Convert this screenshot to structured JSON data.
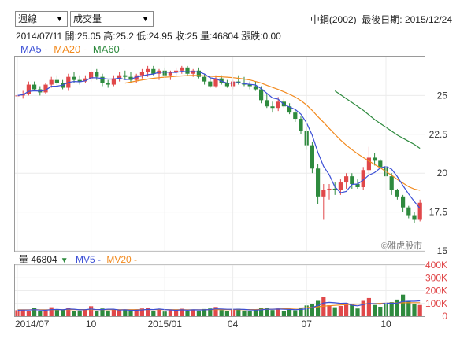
{
  "toolbar": {
    "period_select": "週線",
    "indicator_select": "成交量",
    "dropdown_glyph": "▼"
  },
  "header": {
    "stock": "中鋼(2002)",
    "last_date_label": "最後日期:",
    "last_date": "2015/12/24"
  },
  "quote": {
    "date": "2014/07/11",
    "open_label": "開:",
    "open": "25.05",
    "high_label": "高:",
    "high": "25.2",
    "low_label": "低:",
    "low": "24.95",
    "close_label": "收:",
    "close": "25",
    "volume_label": "量:",
    "volume": "46804",
    "change_label": "漲跌:",
    "change": "0.00"
  },
  "legend": {
    "ma5": "MA5 -",
    "ma20": "MA20 -",
    "ma60": "MA60 -",
    "vol_label": "量 46804",
    "vol_arrow": "▼",
    "mv5": "MV5 -",
    "mv20": "MV20 -"
  },
  "watermark": "©雅虎股市",
  "colors": {
    "up": "#e0484a",
    "down": "#2e8a3e",
    "ma5": "#3b4fd6",
    "ma20": "#f28a1e",
    "ma60": "#2e8a3e",
    "blue_text": "#3b4fd6",
    "orange_text": "#f28a1e",
    "green_text": "#2e8a3e"
  },
  "chart_data": [
    {
      "type": "candlestick",
      "title": "",
      "y_ticks": [
        "25",
        "22.5",
        "20",
        "17.5",
        "15"
      ],
      "ylim": [
        15,
        27.5
      ],
      "x_tick_labels": [
        "2014/07",
        "10",
        "2015/01",
        "04",
        "07",
        "10"
      ],
      "x_tick_weeks": [
        0,
        13,
        26,
        38,
        51,
        65
      ],
      "candles": [
        [
          25.0,
          25.2,
          24.95,
          25.0
        ],
        [
          25.0,
          25.3,
          24.8,
          25.1
        ],
        [
          25.1,
          25.9,
          25.0,
          25.7
        ],
        [
          25.7,
          25.9,
          25.3,
          25.4
        ],
        [
          25.4,
          25.6,
          25.0,
          25.2
        ],
        [
          25.2,
          25.8,
          25.1,
          25.7
        ],
        [
          25.7,
          26.2,
          25.5,
          26.0
        ],
        [
          26.0,
          26.3,
          25.6,
          25.8
        ],
        [
          25.8,
          26.0,
          25.4,
          25.5
        ],
        [
          25.5,
          26.4,
          25.3,
          26.2
        ],
        [
          26.2,
          26.5,
          25.8,
          26.0
        ],
        [
          26.0,
          26.3,
          25.7,
          25.9
        ],
        [
          25.9,
          26.3,
          25.8,
          26.1
        ],
        [
          26.1,
          26.6,
          25.9,
          26.5
        ],
        [
          26.5,
          26.7,
          26.0,
          26.2
        ],
        [
          26.2,
          26.4,
          25.6,
          25.8
        ],
        [
          25.8,
          26.0,
          25.5,
          25.7
        ],
        [
          25.7,
          26.3,
          25.6,
          26.1
        ],
        [
          26.1,
          26.5,
          25.9,
          26.3
        ],
        [
          26.3,
          26.6,
          26.0,
          26.2
        ],
        [
          26.2,
          26.5,
          25.8,
          26.0
        ],
        [
          26.0,
          26.4,
          25.8,
          26.3
        ],
        [
          26.3,
          26.7,
          26.1,
          26.5
        ],
        [
          26.5,
          26.9,
          26.2,
          26.7
        ],
        [
          26.7,
          26.9,
          26.3,
          26.4
        ],
        [
          26.4,
          26.7,
          26.0,
          26.6
        ],
        [
          26.6,
          26.8,
          26.2,
          26.3
        ],
        [
          26.3,
          26.6,
          26.0,
          26.5
        ],
        [
          26.5,
          26.8,
          26.3,
          26.6
        ],
        [
          26.6,
          26.9,
          26.4,
          26.8
        ],
        [
          26.8,
          26.9,
          26.3,
          26.4
        ],
        [
          26.4,
          26.7,
          26.2,
          26.6
        ],
        [
          26.6,
          26.8,
          26.1,
          26.2
        ],
        [
          26.2,
          26.4,
          25.7,
          25.9
        ],
        [
          25.9,
          26.2,
          25.5,
          25.6
        ],
        [
          25.6,
          26.3,
          25.5,
          26.1
        ],
        [
          26.1,
          26.3,
          25.7,
          25.8
        ],
        [
          25.8,
          26.0,
          25.5,
          25.6
        ],
        [
          25.6,
          26.0,
          25.4,
          25.9
        ],
        [
          25.9,
          26.3,
          25.7,
          25.8
        ],
        [
          25.8,
          26.2,
          25.6,
          25.7
        ],
        [
          25.7,
          25.9,
          25.4,
          25.6
        ],
        [
          25.6,
          25.9,
          25.3,
          25.4
        ],
        [
          25.4,
          25.6,
          24.5,
          24.7
        ],
        [
          24.7,
          25.1,
          24.2,
          24.3
        ],
        [
          24.3,
          24.6,
          23.9,
          24.2
        ],
        [
          24.2,
          24.9,
          24.0,
          24.6
        ],
        [
          24.6,
          24.8,
          24.2,
          24.3
        ],
        [
          24.3,
          24.5,
          23.8,
          23.9
        ],
        [
          23.9,
          24.1,
          23.3,
          23.5
        ],
        [
          23.5,
          23.7,
          22.5,
          22.7
        ],
        [
          22.7,
          23.0,
          21.5,
          21.8
        ],
        [
          21.8,
          22.0,
          20.0,
          20.3
        ],
        [
          20.3,
          20.6,
          18.0,
          18.5
        ],
        [
          18.5,
          19.3,
          17.0,
          18.9
        ],
        [
          18.9,
          19.3,
          18.3,
          19.0
        ],
        [
          19.0,
          19.4,
          18.6,
          18.9
        ],
        [
          18.9,
          19.6,
          18.6,
          19.4
        ],
        [
          19.4,
          20.0,
          19.0,
          19.8
        ],
        [
          19.8,
          20.0,
          19.0,
          19.3
        ],
        [
          19.3,
          19.6,
          19.0,
          19.1
        ],
        [
          19.1,
          20.4,
          18.9,
          20.2
        ],
        [
          20.2,
          21.7,
          19.9,
          21.0
        ],
        [
          21.0,
          21.3,
          20.5,
          20.8
        ],
        [
          20.8,
          20.9,
          20.3,
          20.4
        ],
        [
          20.4,
          20.9,
          19.6,
          19.8
        ],
        [
          19.8,
          20.0,
          18.6,
          18.9
        ],
        [
          18.9,
          19.0,
          18.3,
          18.5
        ],
        [
          18.5,
          18.6,
          17.5,
          17.8
        ],
        [
          17.8,
          17.9,
          17.1,
          17.3
        ],
        [
          17.3,
          17.5,
          16.8,
          17.0
        ],
        [
          17.0,
          18.3,
          16.9,
          18.1
        ]
      ],
      "ma5": [
        25.0,
        25.05,
        25.27,
        25.3,
        25.28,
        25.35,
        25.59,
        25.6,
        25.67,
        25.84,
        25.9,
        25.88,
        25.94,
        26.14,
        26.14,
        26.1,
        26.06,
        26.06,
        26.12,
        26.02,
        26.06,
        26.18,
        26.26,
        26.34,
        26.38,
        26.5,
        26.5,
        26.5,
        26.48,
        26.56,
        26.52,
        26.54,
        26.52,
        26.38,
        26.14,
        26.08,
        25.92,
        25.8,
        25.8,
        25.84,
        25.76,
        25.72,
        25.68,
        25.44,
        25.14,
        24.84,
        24.76,
        24.42,
        24.26,
        24.1,
        23.8,
        23.24,
        22.44,
        21.34,
        20.44,
        19.9,
        19.12,
        18.74,
        18.82,
        19.28,
        19.3,
        19.56,
        19.88,
        20.04,
        20.34,
        20.44,
        20.26,
        19.78,
        19.2,
        18.66,
        18.18,
        17.74
      ],
      "ma20": [
        null,
        null,
        null,
        null,
        null,
        null,
        null,
        null,
        null,
        null,
        null,
        null,
        null,
        null,
        null,
        null,
        null,
        null,
        null,
        25.8,
        25.86,
        25.93,
        26.0,
        26.06,
        26.11,
        26.15,
        26.18,
        26.2,
        26.24,
        26.26,
        26.28,
        26.29,
        26.28,
        26.26,
        26.24,
        26.22,
        26.2,
        26.18,
        26.15,
        26.11,
        26.06,
        26.0,
        25.9,
        25.8,
        25.66,
        25.52,
        25.39,
        25.24,
        25.08,
        24.9,
        24.67,
        24.39,
        24.04,
        23.64,
        23.27,
        22.88,
        22.5,
        22.13,
        21.8,
        21.52,
        21.25,
        21.01,
        20.78,
        20.56,
        20.35,
        20.1,
        19.87,
        19.6,
        19.36,
        19.13,
        18.98,
        18.9
      ],
      "ma60": {
        "x_start": 56,
        "y": [
          25.3,
          25.05,
          24.8,
          24.55,
          24.3,
          24.05,
          23.75,
          23.45,
          23.2,
          22.95,
          22.7,
          22.45,
          22.25,
          22.05,
          21.85,
          21.6
        ]
      }
    },
    {
      "type": "bar",
      "title": "",
      "y_ticks": [
        "400K",
        "300K",
        "200K",
        "100K",
        "0"
      ],
      "ylim": [
        0,
        400000
      ],
      "volumes": [
        46804,
        52000,
        40000,
        62000,
        38000,
        45000,
        70000,
        48000,
        50000,
        66000,
        41000,
        44000,
        52000,
        78000,
        40000,
        60000,
        44000,
        50000,
        46000,
        49000,
        38000,
        54000,
        60000,
        64000,
        42000,
        58000,
        36000,
        46000,
        50000,
        58000,
        40000,
        52000,
        44000,
        56000,
        60000,
        72000,
        48000,
        40000,
        52000,
        58000,
        44000,
        42000,
        46000,
        62000,
        66000,
        48000,
        60000,
        42000,
        50000,
        46000,
        68000,
        84000,
        98000,
        120000,
        150000,
        86000,
        70000,
        80000,
        104000,
        90000,
        60000,
        120000,
        142000,
        88000,
        74000,
        92000,
        110000,
        130000,
        168000,
        120000,
        96000,
        88000
      ],
      "mv5": [
        47000,
        48000,
        48000,
        51000,
        48000,
        47000,
        51000,
        53000,
        50000,
        56000,
        55000,
        50000,
        51000,
        56000,
        51000,
        52000,
        55000,
        55000,
        48000,
        50000,
        46000,
        47000,
        49000,
        53000,
        52000,
        56000,
        52000,
        49000,
        46000,
        50000,
        47000,
        50000,
        49000,
        50000,
        52000,
        57000,
        56000,
        54000,
        54000,
        54000,
        53000,
        49000,
        48000,
        50000,
        54000,
        54000,
        56000,
        54000,
        53000,
        51000,
        53000,
        58000,
        69000,
        83000,
        104000,
        108000,
        105000,
        101000,
        102000,
        86000,
        81000,
        91000,
        100000,
        98000,
        95000,
        103000,
        101000,
        103000,
        115000,
        117000,
        117000,
        120000
      ],
      "mv20": [
        50000,
        50000,
        50000,
        50000,
        50000,
        50000,
        50000,
        51000,
        51000,
        52000,
        52000,
        52000,
        52000,
        52000,
        52000,
        52000,
        52000,
        52000,
        51000,
        51000,
        51000,
        51000,
        51000,
        51000,
        51000,
        51000,
        51000,
        51000,
        51000,
        51000,
        50000,
        50000,
        50000,
        50000,
        51000,
        51000,
        52000,
        52000,
        52000,
        52000,
        52000,
        52000,
        52000,
        53000,
        54000,
        55000,
        56000,
        58000,
        60000,
        62000,
        64000,
        67000,
        70000,
        74000,
        79000,
        82000,
        85000,
        88000,
        91000,
        92000,
        94000,
        96000,
        98000,
        100000,
        101000,
        102000,
        103000,
        104000,
        105000,
        106000,
        106000,
        106000
      ]
    }
  ]
}
